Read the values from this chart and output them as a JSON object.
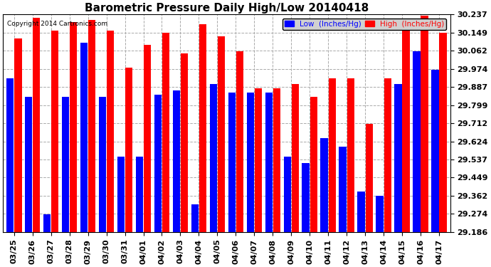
{
  "title": "Barometric Pressure Daily High/Low 20140418",
  "copyright": "Copyright 2014 Cartronics.com",
  "legend_low": "Low  (Inches/Hg)",
  "legend_high": "High  (Inches/Hg)",
  "dates": [
    "03/25",
    "03/26",
    "03/27",
    "03/28",
    "03/29",
    "03/30",
    "03/31",
    "04/01",
    "04/02",
    "04/03",
    "04/04",
    "04/05",
    "04/06",
    "04/07",
    "04/08",
    "04/09",
    "04/10",
    "04/11",
    "04/12",
    "04/13",
    "04/14",
    "04/15",
    "04/16",
    "04/17"
  ],
  "low": [
    29.93,
    29.84,
    29.27,
    29.84,
    30.1,
    29.84,
    29.55,
    29.55,
    29.85,
    29.87,
    29.32,
    29.9,
    29.86,
    29.86,
    29.86,
    29.55,
    29.52,
    29.64,
    29.6,
    29.38,
    29.36,
    29.9,
    30.06,
    29.97
  ],
  "high": [
    30.12,
    30.22,
    30.16,
    30.2,
    30.21,
    30.16,
    29.98,
    30.09,
    30.15,
    30.05,
    30.19,
    30.13,
    30.06,
    29.88,
    29.88,
    29.9,
    29.84,
    29.93,
    29.93,
    29.71,
    29.93,
    30.18,
    30.23,
    30.15
  ],
  "ymin": 29.186,
  "ymax": 30.237,
  "yticks": [
    29.186,
    29.274,
    29.362,
    29.449,
    29.537,
    29.624,
    29.712,
    29.799,
    29.887,
    29.974,
    30.062,
    30.149,
    30.237
  ],
  "bar_color_low": "#0000ff",
  "bar_color_high": "#ff0000",
  "background_color": "#ffffff",
  "grid_color": "#aaaaaa",
  "title_fontsize": 11,
  "tick_fontsize": 8,
  "legend_fontsize": 7.5
}
